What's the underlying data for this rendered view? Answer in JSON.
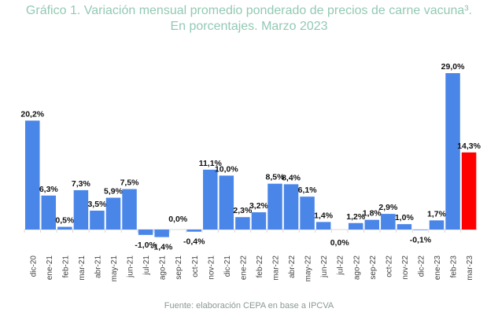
{
  "chart_data": {
    "type": "bar",
    "title": "Gráfico 1. Variación mensual promedio ponderado de precios de carne vacuna³.",
    "subtitle": "En porcentajes. Marzo 2023",
    "source": "Fuente: elaboración CEPA en base a IPCVA",
    "categories": [
      "dic-20",
      "ene-21",
      "feb-21",
      "mar-21",
      "abr-21",
      "may-21",
      "jun-21",
      "jul-21",
      "ago-21",
      "sep-21",
      "oct-21",
      "nov-21",
      "dic-21",
      "ene-22",
      "feb-22",
      "mar-22",
      "abr-22",
      "may-22",
      "jun-22",
      "jul-22",
      "ago-22",
      "sep-22",
      "oct-22",
      "nov-22",
      "dic-22",
      "ene-23",
      "feb-23",
      "mar-23"
    ],
    "values": [
      20.2,
      6.3,
      0.5,
      7.3,
      3.5,
      5.9,
      7.5,
      -1.0,
      -1.4,
      0.0,
      -0.4,
      11.1,
      10.0,
      2.3,
      3.2,
      8.5,
      8.4,
      6.1,
      1.4,
      0.0,
      1.2,
      1.8,
      2.9,
      1.0,
      -0.1,
      1.7,
      29.0,
      14.3
    ],
    "data_labels": [
      "20,2%",
      "6,3%",
      "0,5%",
      "7,3%",
      "3,5%",
      "5,9%",
      "7,5%",
      "-1,0%",
      "-1,4%",
      "0,0%",
      "-0,4%",
      "11,1%",
      "10,0%",
      "2,3%",
      "3,2%",
      "8,5%",
      "8,4%",
      "6,1%",
      "1,4%",
      "0,0%",
      "1,2%",
      "1,8%",
      "2,9%",
      "1,0%",
      "-0,1%",
      "1,7%",
      "29,0%",
      "14,3%"
    ],
    "colors": {
      "default": "#4a86e8",
      "highlight": "#ff0000",
      "highlight_index": 27
    },
    "grid": false,
    "legend": "none"
  }
}
